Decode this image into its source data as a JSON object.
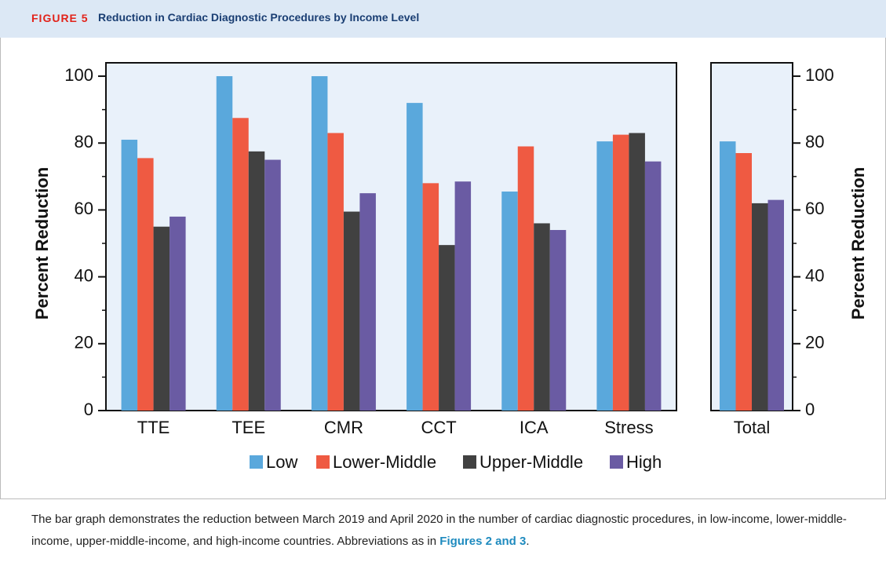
{
  "figure": {
    "label": "FIGURE 5",
    "title": "Reduction in Cardiac Diagnostic Procedures by Income Level"
  },
  "chart_data": [
    {
      "type": "bar",
      "ylabel": "Percent Reduction",
      "categories": [
        "TTE",
        "TEE",
        "CMR",
        "CCT",
        "ICA",
        "Stress"
      ],
      "series": [
        {
          "name": "Low",
          "color": "#5aa8dc",
          "values": [
            81,
            100,
            100,
            92,
            65.5,
            80.5
          ]
        },
        {
          "name": "Lower-Middle",
          "color": "#ef5a42",
          "values": [
            75.5,
            87.5,
            83,
            68,
            79,
            82.5
          ]
        },
        {
          "name": "Upper-Middle",
          "color": "#414141",
          "values": [
            55,
            77.5,
            59.5,
            49.5,
            56,
            83
          ]
        },
        {
          "name": "High",
          "color": "#6a5ba3",
          "values": [
            58,
            75,
            65,
            68.5,
            54,
            74.5
          ]
        }
      ],
      "ylim": [
        0,
        104
      ],
      "yticks": [
        0,
        20,
        40,
        60,
        80,
        100
      ],
      "minor_yticks": [
        10,
        30,
        50,
        70,
        90
      ]
    },
    {
      "type": "bar",
      "ylabel": "Percent Reduction",
      "categories": [
        "Total"
      ],
      "series": [
        {
          "color": "#5aa8dc",
          "values": [
            80.5
          ]
        },
        {
          "color": "#ef5a42",
          "values": [
            77
          ]
        },
        {
          "color": "#414141",
          "values": [
            62
          ]
        },
        {
          "color": "#6a5ba3",
          "values": [
            63
          ]
        }
      ],
      "ylim": [
        0,
        104
      ],
      "yticks": [
        0,
        20,
        40,
        60,
        80,
        100
      ],
      "minor_yticks": [
        10,
        30,
        50,
        70,
        90
      ]
    }
  ],
  "caption": {
    "text": "The bar graph demonstrates the reduction between March 2019 and April 2020 in the number of cardiac diagnostic procedures, in low-income, lower-middle-income, upper-middle-income, and high-income countries. Abbreviations as in ",
    "link": "Figures 2 and 3",
    "end": "."
  }
}
